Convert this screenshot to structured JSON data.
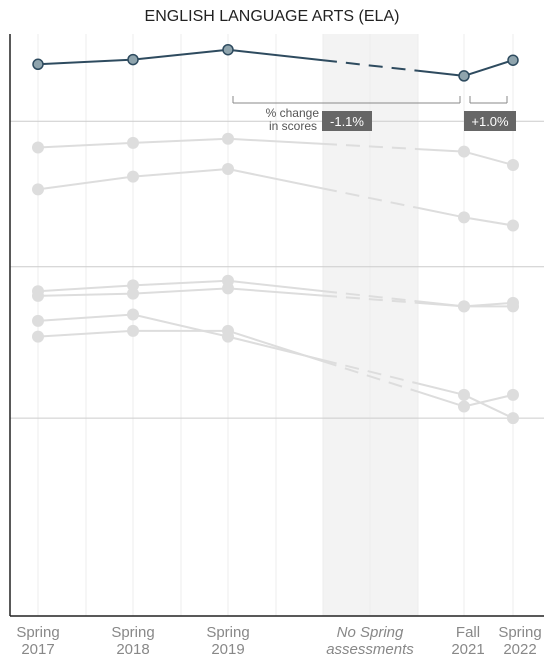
{
  "chart_data": {
    "type": "line",
    "title": "ENGLISH LANGUAGE ARTS (ELA)",
    "xlabel": "",
    "ylabel": "",
    "categories": [
      {
        "line1": "Spring",
        "line2": "2017"
      },
      {
        "line1": "Spring",
        "line2": "2018"
      },
      {
        "line1": "Spring",
        "line2": "2019"
      },
      {
        "line1": "No Spring",
        "line2": "assessments"
      },
      {
        "line1": "Fall",
        "line2": "2021"
      },
      {
        "line1": "Spring",
        "line2": "2022"
      }
    ],
    "x": [
      2017,
      2018,
      2019,
      2021.5,
      2022
    ],
    "gap": [
      2019.99,
      2021.0
    ],
    "ylim": [
      0,
      100
    ],
    "grid_y": [
      34,
      60,
      85
    ],
    "colors": {
      "highlight": "#2e4b5f",
      "highlight_fill": "#8fa4ad",
      "muted": "#dddddd",
      "badge": "#666666",
      "axis": "#222222",
      "shade": "#f3f3f3"
    },
    "series": [
      {
        "values": [
          94.8,
          95.6,
          97.3,
          92.8,
          95.5
        ],
        "highlight": true
      },
      {
        "values": [
          80.5,
          81.3,
          82.0,
          79.8,
          77.5
        ],
        "highlight": false
      },
      {
        "values": [
          73.3,
          75.5,
          76.8,
          68.5,
          67.1
        ],
        "highlight": false
      },
      {
        "values": [
          55.8,
          56.8,
          57.6,
          53.2,
          53.8
        ],
        "highlight": false
      },
      {
        "values": [
          55.0,
          55.4,
          56.3,
          53.2,
          53.2
        ],
        "highlight": false
      },
      {
        "values": [
          50.7,
          51.8,
          48.0,
          38.0,
          34.0
        ],
        "highlight": false
      },
      {
        "values": [
          48.0,
          49.0,
          49.0,
          36.0,
          38.0
        ],
        "highlight": false
      }
    ],
    "annotations": [
      {
        "label_lines": [
          "% change",
          "in scores"
        ],
        "value": "-1.1%",
        "from": 2017,
        "to": 2021.5
      },
      {
        "value": "+1.0%",
        "from": 2021.5,
        "to": 2022
      }
    ]
  }
}
